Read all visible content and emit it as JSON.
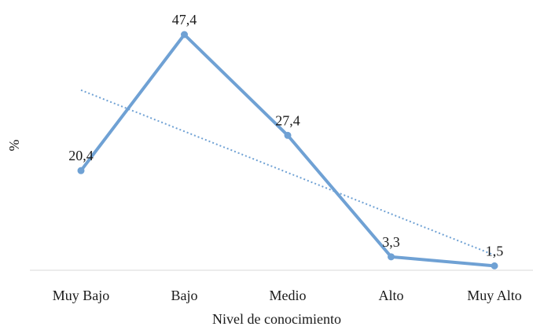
{
  "chart_data": {
    "type": "line",
    "categories": [
      "Muy Bajo",
      "Bajo",
      "Medio",
      "Alto",
      "Muy Alto"
    ],
    "series": [
      {
        "values": [
          20.4,
          47.4,
          27.4,
          3.3,
          1.5
        ],
        "data_labels": [
          "20,4",
          "47,4",
          "27,4",
          "3,3",
          "1,5"
        ],
        "color": "#6fa1d4",
        "trendline": "linear"
      }
    ],
    "title": "",
    "xlabel": "Nivel de conocimiento",
    "ylabel": "%",
    "ylim": [
      0,
      50
    ],
    "grid": false,
    "legend": "none",
    "trendline_color": "#6fa1d4"
  }
}
